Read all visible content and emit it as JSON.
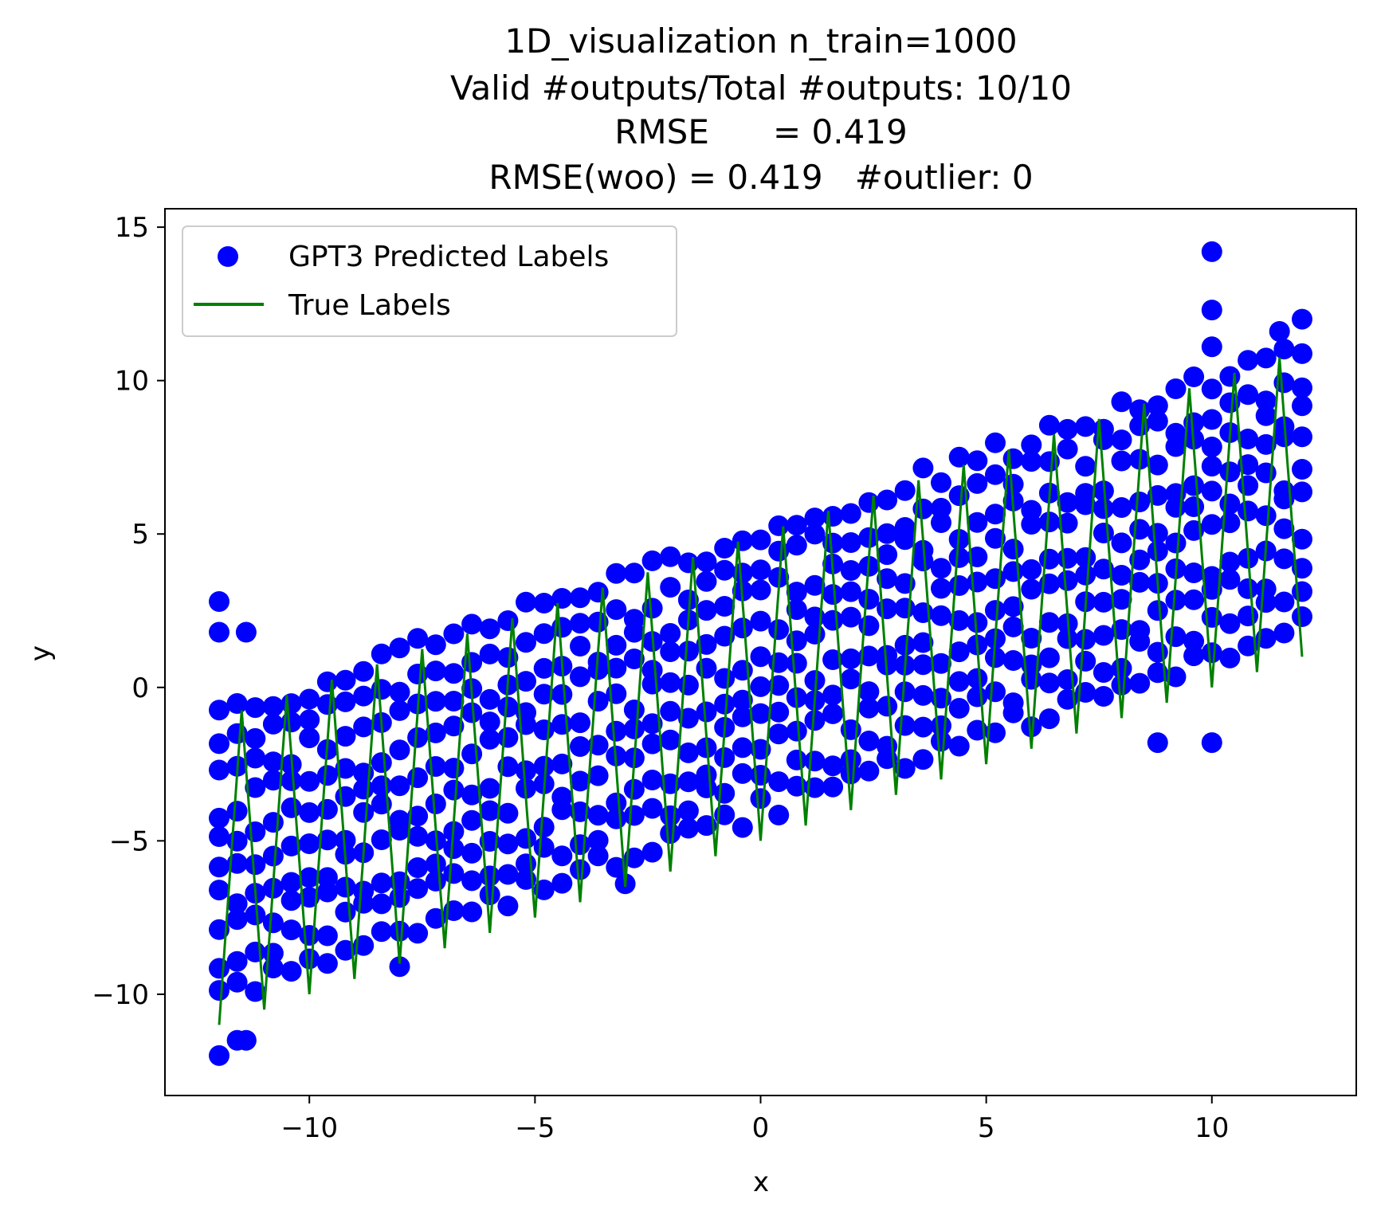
{
  "chart_data": {
    "type": "scatter",
    "title_lines": [
      "1D_visualization  n_train=1000",
      "Valid #outputs/Total #outputs: 10/10",
      "RMSE      = 0.419",
      "RMSE(woo) = 0.419   #outlier: 0"
    ],
    "xlabel": "x",
    "ylabel": "y",
    "xlim": [
      -13.2,
      13.2
    ],
    "ylim": [
      -13.3,
      15.6
    ],
    "xticks": [
      -10,
      -5,
      0,
      5,
      10
    ],
    "yticks": [
      -10,
      -5,
      0,
      5,
      10,
      15
    ],
    "xtick_labels": [
      "−10",
      "−5",
      "0",
      "5",
      "10"
    ],
    "ytick_labels": [
      "−10",
      "−5",
      "0",
      "5",
      "10",
      "15"
    ],
    "grid": false,
    "legend_position": "top-left",
    "series": [
      {
        "name": "GPT3 Predicted Labels",
        "kind": "scatter",
        "color": "#0000ff",
        "description": "approx. 10 predictions per x, pattern y = x/2 + offset where offset in {-4,...,5} plus noise; extreme points listed below",
        "extreme_points": [
          [
            10.0,
            14.2
          ],
          [
            10.0,
            12.3
          ],
          [
            10.0,
            11.1
          ],
          [
            12.0,
            12.0
          ],
          [
            11.5,
            11.6
          ],
          [
            -12.0,
            2.8
          ],
          [
            -12.0,
            1.8
          ],
          [
            -11.4,
            1.8
          ],
          [
            -12.0,
            -12.0
          ],
          [
            -11.6,
            -11.5
          ],
          [
            -11.4,
            -11.5
          ],
          [
            -8.0,
            -9.1
          ],
          [
            8.8,
            -1.8
          ],
          [
            10.0,
            -1.8
          ],
          [
            -3.0,
            -6.4
          ]
        ]
      },
      {
        "name": "True Labels",
        "kind": "line",
        "color": "#008000",
        "description": "sawtooth: y = x/2 + 6*frac(x) - 5 approx, sampled every 0.025"
      }
    ]
  }
}
